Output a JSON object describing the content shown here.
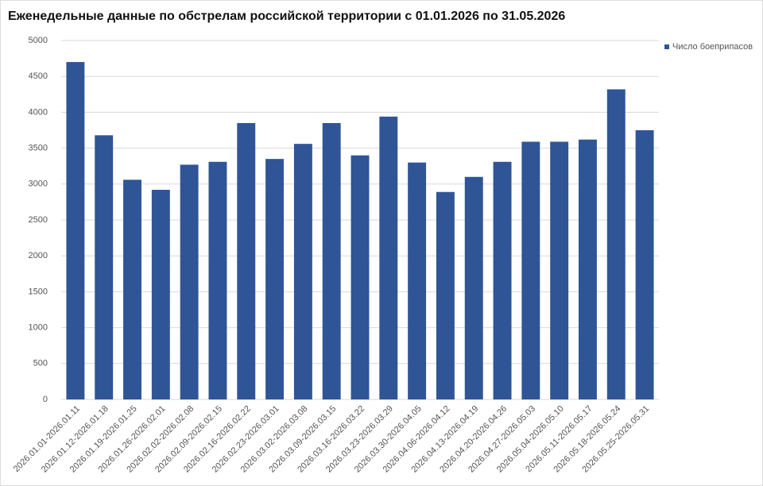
{
  "chart_data": {
    "type": "bar",
    "title": "Еженедельные данные по обстрелам российской территории с 01.01.2026 по 31.05.2026",
    "categories": [
      "2026.01.01-2026.01.11",
      "2026.01.12-2026.01.18",
      "2026.01.19-2026.01.25",
      "2026.01.26-2026.02.01",
      "2026.02.02-2026.02.08",
      "2026.02.09-2026.02.15",
      "2026.02.16-2026.02.22",
      "2026.02.23-2026.03.01",
      "2026.03.02-2026.03.08",
      "2026.03.09-2026.03.15",
      "2026.03.16-2026.03.22",
      "2026.03.23-2026.03.29",
      "2026.03.30-2026.04.05",
      "2026.04.06-2026.04.12",
      "2026.04.13-2026.04.19",
      "2026.04.20-2026.04.26",
      "2026.04.27-2026.05.03",
      "2026.05.04-2026.05.10",
      "2026.05.11-2026.05.17",
      "2026.05.18-2026.05.24",
      "2026.05.25-2026.05.31"
    ],
    "series": [
      {
        "name": "Число боеприпасов",
        "color": "#2f5597",
        "values": [
          4700,
          3680,
          3060,
          2920,
          3270,
          3310,
          3850,
          3350,
          3560,
          3850,
          3400,
          3940,
          3300,
          2890,
          3100,
          3310,
          3590,
          3590,
          3620,
          4320,
          3750
        ]
      }
    ],
    "ylim": [
      0,
      5000
    ],
    "yticks": [
      0,
      500,
      1000,
      1500,
      2000,
      2500,
      3000,
      3500,
      4000,
      4500,
      5000
    ],
    "grid": true,
    "legend": "top-right"
  }
}
